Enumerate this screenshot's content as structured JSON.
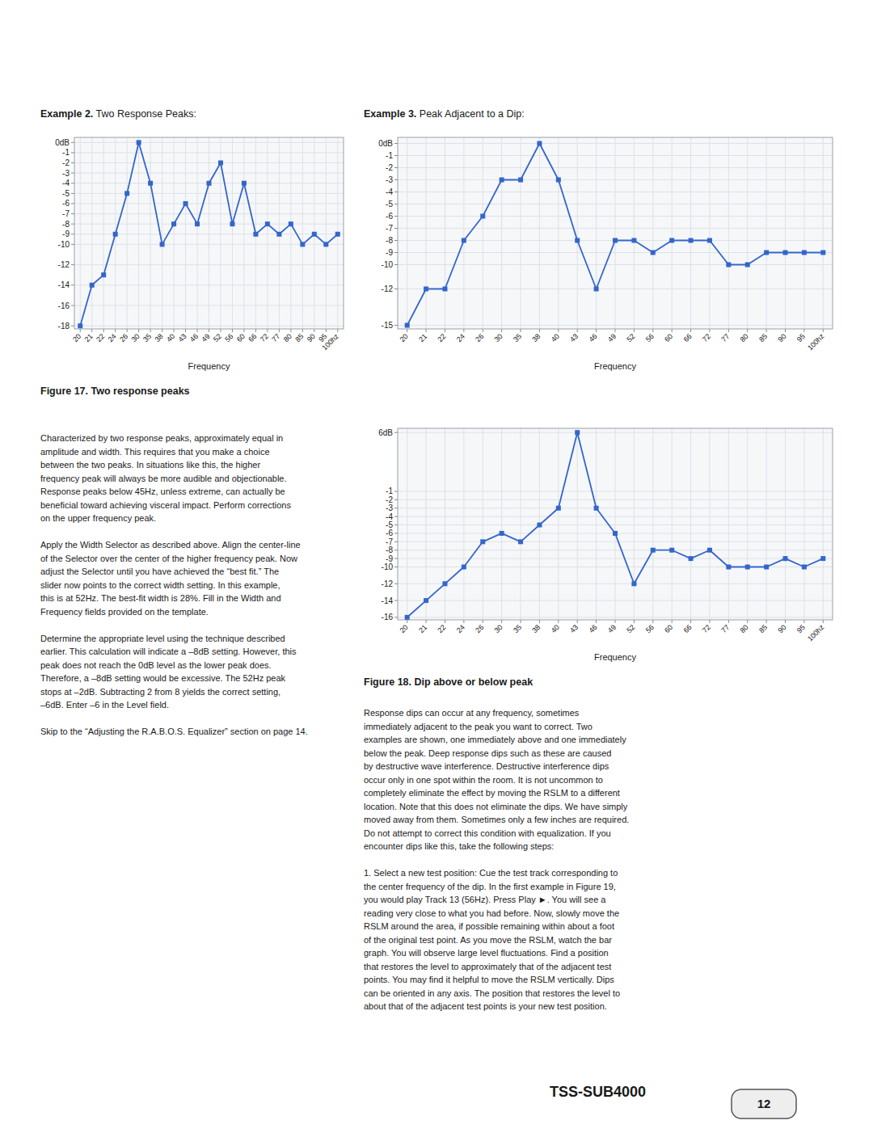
{
  "chart_data": [
    {
      "type": "line",
      "categories": [
        "20",
        "21",
        "22",
        "24",
        "26",
        "30",
        "35",
        "38",
        "40",
        "43",
        "46",
        "49",
        "52",
        "56",
        "60",
        "66",
        "72",
        "77",
        "80",
        "85",
        "90",
        "95",
        "100hz"
      ],
      "values": [
        -18,
        -14,
        -13,
        -9,
        -5,
        0,
        -4,
        -10,
        -8,
        -6,
        -8,
        -4,
        -2,
        -8,
        -4,
        -9,
        -8,
        -9,
        -8,
        -10,
        -9,
        -10,
        -9
      ],
      "ylim": [
        -18.3,
        0.5
      ],
      "yticks": [
        {
          "value": 0,
          "label": "0dB"
        },
        -1,
        -2,
        -3,
        -4,
        -5,
        -6,
        -7,
        -8,
        -9,
        -10,
        -12,
        -14,
        -16,
        -18
      ],
      "xlabel": "Frequency",
      "grid": true,
      "marker": "square"
    },
    {
      "type": "line",
      "categories": [
        "20",
        "21",
        "22",
        "24",
        "26",
        "30",
        "35",
        "38",
        "40",
        "43",
        "46",
        "49",
        "52",
        "56",
        "60",
        "66",
        "72",
        "77",
        "80",
        "85",
        "90",
        "95",
        "100hz"
      ],
      "values": [
        -15,
        -12,
        -12,
        -8,
        -6,
        -3,
        -3,
        0,
        -3,
        -8,
        -12,
        -8,
        -8,
        -9,
        -8,
        -8,
        -8,
        -10,
        -10,
        -9,
        -9,
        -9,
        -9
      ],
      "ylim": [
        -15.3,
        0.5
      ],
      "yticks": [
        {
          "value": 0,
          "label": "0dB"
        },
        -1,
        -2,
        -3,
        -4,
        -5,
        -6,
        -7,
        -8,
        -9,
        -10,
        -12,
        -15
      ],
      "xlabel": "Frequency",
      "grid": true,
      "marker": "square"
    },
    {
      "type": "line",
      "categories": [
        "20",
        "21",
        "22",
        "24",
        "26",
        "30",
        "35",
        "38",
        "40",
        "43",
        "46",
        "49",
        "52",
        "56",
        "60",
        "66",
        "72",
        "77",
        "80",
        "85",
        "90",
        "95",
        "100hz"
      ],
      "values": [
        -16,
        -14,
        -12,
        -10,
        -7,
        -6,
        -7,
        -5,
        -3,
        6,
        -3,
        -6,
        -12,
        -8,
        -8,
        -9,
        -8,
        -10,
        -10,
        -10,
        -9,
        -10,
        -9
      ],
      "ylim": [
        -16.3,
        6.5
      ],
      "yticks": [
        {
          "value": 6,
          "label": "6dB"
        },
        -1,
        -2,
        -3,
        -4,
        -5,
        -6,
        -7,
        -8,
        -9,
        -10,
        -12,
        -14,
        -16
      ],
      "xlabel": "Frequency",
      "grid": true,
      "marker": "square"
    }
  ],
  "page": {
    "headings": [
      {
        "bold": "Example 2.",
        "normal": " Two Response Peaks:"
      },
      {
        "bold": "Example 3.",
        "normal": " Peak Adjacent to a Dip:"
      }
    ],
    "captions": [
      "Figure 17. Two response peaks",
      "Figure 18. Dip above or below peak"
    ],
    "body": [
      [
        [
          "Characterized by two response peaks, approximately equal in",
          "amplitude and width. This requires that you make a choice",
          "between the two peaks. In situations like this, the higher",
          "frequency peak will always be more audible and objectionable.",
          "Response peaks below 45Hz, unless extreme, can actually be",
          "beneficial toward achieving visceral impact. Perform corrections",
          "on the upper frequency peak."
        ],
        [
          "Apply the Width Selector as described above. Align the center-line",
          "of the Selector over the center of the higher frequency peak. Now",
          "adjust the Selector until you have achieved the “best fit.” The",
          "slider now points to the correct width setting. In this example,",
          "this is at 52Hz. The best-fit width is 28%. Fill in the Width and",
          "Frequency fields provided on the template."
        ],
        [
          "Determine the appropriate level using the technique described",
          "earlier. This calculation will indicate a –8dB setting. However, this",
          "peak does not reach the 0dB level as the lower peak does.",
          "Therefore, a –8dB setting would be excessive. The 52Hz peak",
          "stops at –2dB. Subtracting 2 from 8 yields the correct setting,",
          "–6dB. Enter –6 in the Level field."
        ],
        [
          "Skip to the “Adjusting the R.A.B.O.S. Equalizer” section on page 14."
        ]
      ],
      [
        [
          "Response dips can occur at any frequency, sometimes",
          "immediately adjacent to the peak you want to correct. Two",
          "examples are shown, one immediately above and one immediately",
          "below the peak. Deep response dips such as these are caused",
          "by destructive wave interference. Destructive interference dips",
          "occur only in one spot within the room. It is not uncommon to",
          "completely eliminate the effect by moving the RSLM to a different",
          "location. Note that this does not eliminate the dips. We have simply",
          "moved away from them. Sometimes only a few inches are required.",
          "Do not attempt to correct this condition with equalization. If you",
          "encounter dips like this, take the following steps:"
        ],
        [
          "1. Select a new test position: Cue the test track corresponding to",
          "the center frequency of the dip. In the first example in Figure 19,",
          "you would play Track 13 (56Hz). Press Play ►. You will see a",
          "reading very close to what you had before. Now, slowly move the",
          "RSLM around the area, if possible remaining within about a foot",
          "of the original test point. As you move the RSLM, watch the bar",
          "graph. You will observe large level fluctuations. Find a position",
          "that restores the level to approximately that of the adjacent test",
          "points. You may find it helpful to move the RSLM vertically. Dips",
          "can be oriented in any axis. The position that restores the level to",
          "about that of the adjacent test points is your new test position."
        ]
      ]
    ],
    "footer": {
      "brand": "TSS-SUB4000",
      "page_number": "12"
    }
  }
}
